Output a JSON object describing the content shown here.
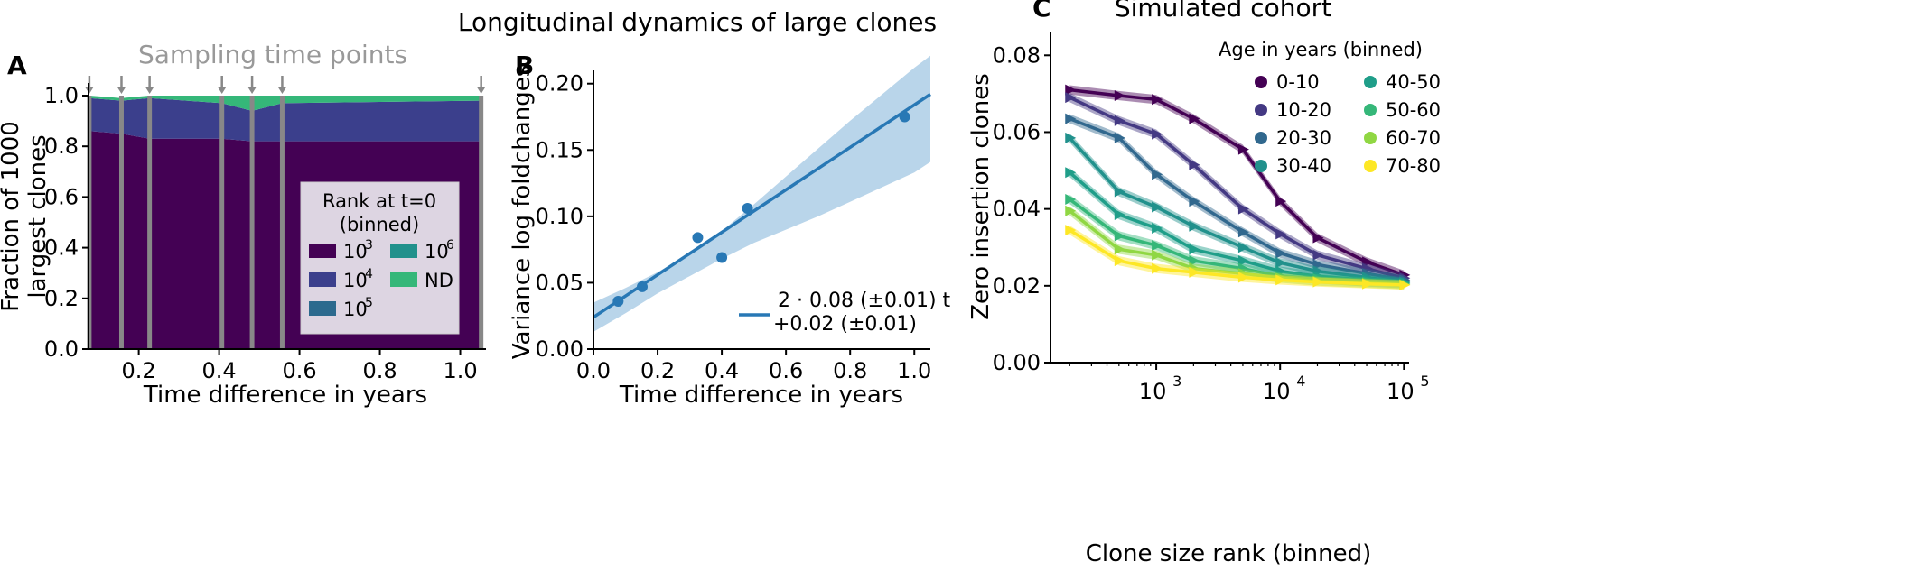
{
  "figure": {
    "title": "Longitudinal dynamics of large clones"
  },
  "chart_data": [
    {
      "panel": "A",
      "type": "area",
      "stacked": true,
      "annotation": "Sampling time points",
      "xlabel": "Time difference in years",
      "ylabel_lines": [
        "Fraction of 1000",
        "largest clones"
      ],
      "xlim": [
        0.075,
        1.055
      ],
      "ylim": [
        0,
        1.0
      ],
      "xticks": [
        0.2,
        0.4,
        0.6,
        0.8,
        1.0
      ],
      "xtick_labels": [
        "0.2",
        "0.4",
        "0.6",
        "0.8",
        "1.0"
      ],
      "yticks": [
        0,
        0.2,
        0.4,
        0.6,
        0.8,
        1.0
      ],
      "ytick_labels": [
        "0.0",
        "0.2",
        "0.4",
        "0.6",
        "0.8",
        "1.0"
      ],
      "x": [
        0.077,
        0.157,
        0.227,
        0.407,
        0.482,
        0.557,
        1.052
      ],
      "sampling_times": [
        0.077,
        0.157,
        0.227,
        0.407,
        0.482,
        0.557,
        1.052
      ],
      "series": [
        {
          "name": "10^3",
          "color": "#440154",
          "values": [
            0.86,
            0.85,
            0.83,
            0.83,
            0.82,
            0.82,
            0.82
          ]
        },
        {
          "name": "10^4",
          "color": "#3b3f8c",
          "values": [
            0.13,
            0.13,
            0.16,
            0.14,
            0.12,
            0.15,
            0.16
          ]
        },
        {
          "name": "10^5",
          "color": "#2c6a8e",
          "values": [
            0.0,
            0.0,
            0.0,
            0.0,
            0.0,
            0.0,
            0.0
          ]
        },
        {
          "name": "10^6",
          "color": "#21918c",
          "values": [
            0.0,
            0.0,
            0.0,
            0.0,
            0.0,
            0.0,
            0.0
          ]
        },
        {
          "name": "ND",
          "color": "#35b779",
          "values": [
            0.01,
            0.01,
            0.01,
            0.03,
            0.06,
            0.03,
            0.02
          ]
        }
      ],
      "legend": {
        "title_lines": [
          "Rank at t=0",
          "(binned)"
        ],
        "placement": "lower-right",
        "entries": [
          {
            "base": "10",
            "exp": "3",
            "color": "#440154"
          },
          {
            "base": "10",
            "exp": "4",
            "color": "#3b3f8c"
          },
          {
            "base": "10",
            "exp": "5",
            "color": "#2c6a8e"
          },
          {
            "base": "10",
            "exp": "6",
            "color": "#21918c"
          },
          {
            "text": "ND",
            "color": "#35b779"
          }
        ]
      }
    },
    {
      "panel": "B",
      "type": "scatter",
      "xlabel": "Time difference in years",
      "ylabel": "Variance log foldchanges",
      "xlim": [
        0,
        1.05
      ],
      "ylim": [
        0,
        0.21
      ],
      "xticks": [
        0,
        0.2,
        0.4,
        0.6,
        0.8,
        1.0
      ],
      "xtick_labels": [
        "0.0",
        "0.2",
        "0.4",
        "0.6",
        "0.8",
        "1.0"
      ],
      "yticks": [
        0,
        0.05,
        0.1,
        0.15,
        0.2
      ],
      "ytick_labels": [
        "0.00",
        "0.05",
        "0.10",
        "0.15",
        "0.20"
      ],
      "points": {
        "x": [
          0.077,
          0.152,
          0.325,
          0.4,
          0.48,
          0.97
        ],
        "y": [
          0.036,
          0.047,
          0.084,
          0.069,
          0.106,
          0.175
        ]
      },
      "fit": {
        "slope": 0.16,
        "intercept": 0.024,
        "x_range": [
          0,
          1.05
        ]
      },
      "band": {
        "x": [
          0,
          0.1,
          0.2,
          0.3,
          0.4,
          0.5,
          0.6,
          0.7,
          0.8,
          0.9,
          1.0,
          1.05
        ],
        "lower": [
          0.013,
          0.027,
          0.042,
          0.055,
          0.068,
          0.08,
          0.09,
          0.1,
          0.111,
          0.122,
          0.133,
          0.141
        ],
        "upper": [
          0.035,
          0.046,
          0.058,
          0.072,
          0.089,
          0.109,
          0.13,
          0.151,
          0.172,
          0.192,
          0.212,
          0.221
        ]
      },
      "color": "#2878b5",
      "band_color": "#b9d5ea",
      "legend": {
        "placement": "lower-right",
        "line1": "2 · 0.08 (±0.01) t",
        "line2": "+0.02 (±0.01)"
      }
    },
    {
      "panel": "C",
      "type": "line",
      "title": "Simulated cohort",
      "xlabel": "Clone size rank (binned)",
      "ylabel": "Zero insertion clones",
      "x_scale": "log",
      "xlim": [
        140,
        110000
      ],
      "ylim": [
        0,
        0.085
      ],
      "xticks": [
        1000,
        10000,
        100000
      ],
      "yticks": [
        0,
        0.02,
        0.04,
        0.06,
        0.08
      ],
      "ytick_labels": [
        "0.00",
        "0.02",
        "0.04",
        "0.06",
        "0.08"
      ],
      "x": [
        200,
        500,
        1000,
        2000,
        5000,
        10000,
        20000,
        50000,
        100000
      ],
      "series": [
        {
          "name": "0-10",
          "color": "#440154",
          "values": [
            0.071,
            0.0695,
            0.0685,
            0.0635,
            0.0555,
            0.042,
            0.0325,
            0.0262,
            0.0228
          ]
        },
        {
          "name": "10-20",
          "color": "#443983",
          "values": [
            0.069,
            0.063,
            0.0595,
            0.0515,
            0.04,
            0.0335,
            0.028,
            0.0245,
            0.022
          ]
        },
        {
          "name": "20-30",
          "color": "#31688e",
          "values": [
            0.0635,
            0.0585,
            0.049,
            0.042,
            0.034,
            0.0285,
            0.0255,
            0.0232,
            0.0215
          ]
        },
        {
          "name": "30-40",
          "color": "#21918c",
          "values": [
            0.0585,
            0.0445,
            0.0405,
            0.0355,
            0.03,
            0.026,
            0.0238,
            0.0222,
            0.021
          ]
        },
        {
          "name": "40-50",
          "color": "#1f9e89",
          "values": [
            0.0495,
            0.0385,
            0.035,
            0.0295,
            0.0265,
            0.0238,
            0.0225,
            0.0215,
            0.0208
          ]
        },
        {
          "name": "50-60",
          "color": "#35b779",
          "values": [
            0.0425,
            0.033,
            0.0305,
            0.0265,
            0.0245,
            0.0225,
            0.0218,
            0.021,
            0.0205
          ]
        },
        {
          "name": "60-70",
          "color": "#90d743",
          "values": [
            0.0395,
            0.0295,
            0.028,
            0.0245,
            0.0232,
            0.022,
            0.0212,
            0.0207,
            0.0203
          ]
        },
        {
          "name": "70-80",
          "color": "#fde725",
          "values": [
            0.0345,
            0.0265,
            0.0245,
            0.0235,
            0.0222,
            0.0215,
            0.021,
            0.0205,
            0.0202
          ]
        }
      ],
      "legend": {
        "title": "Age in years (binned)",
        "placement": "top-right"
      }
    }
  ]
}
